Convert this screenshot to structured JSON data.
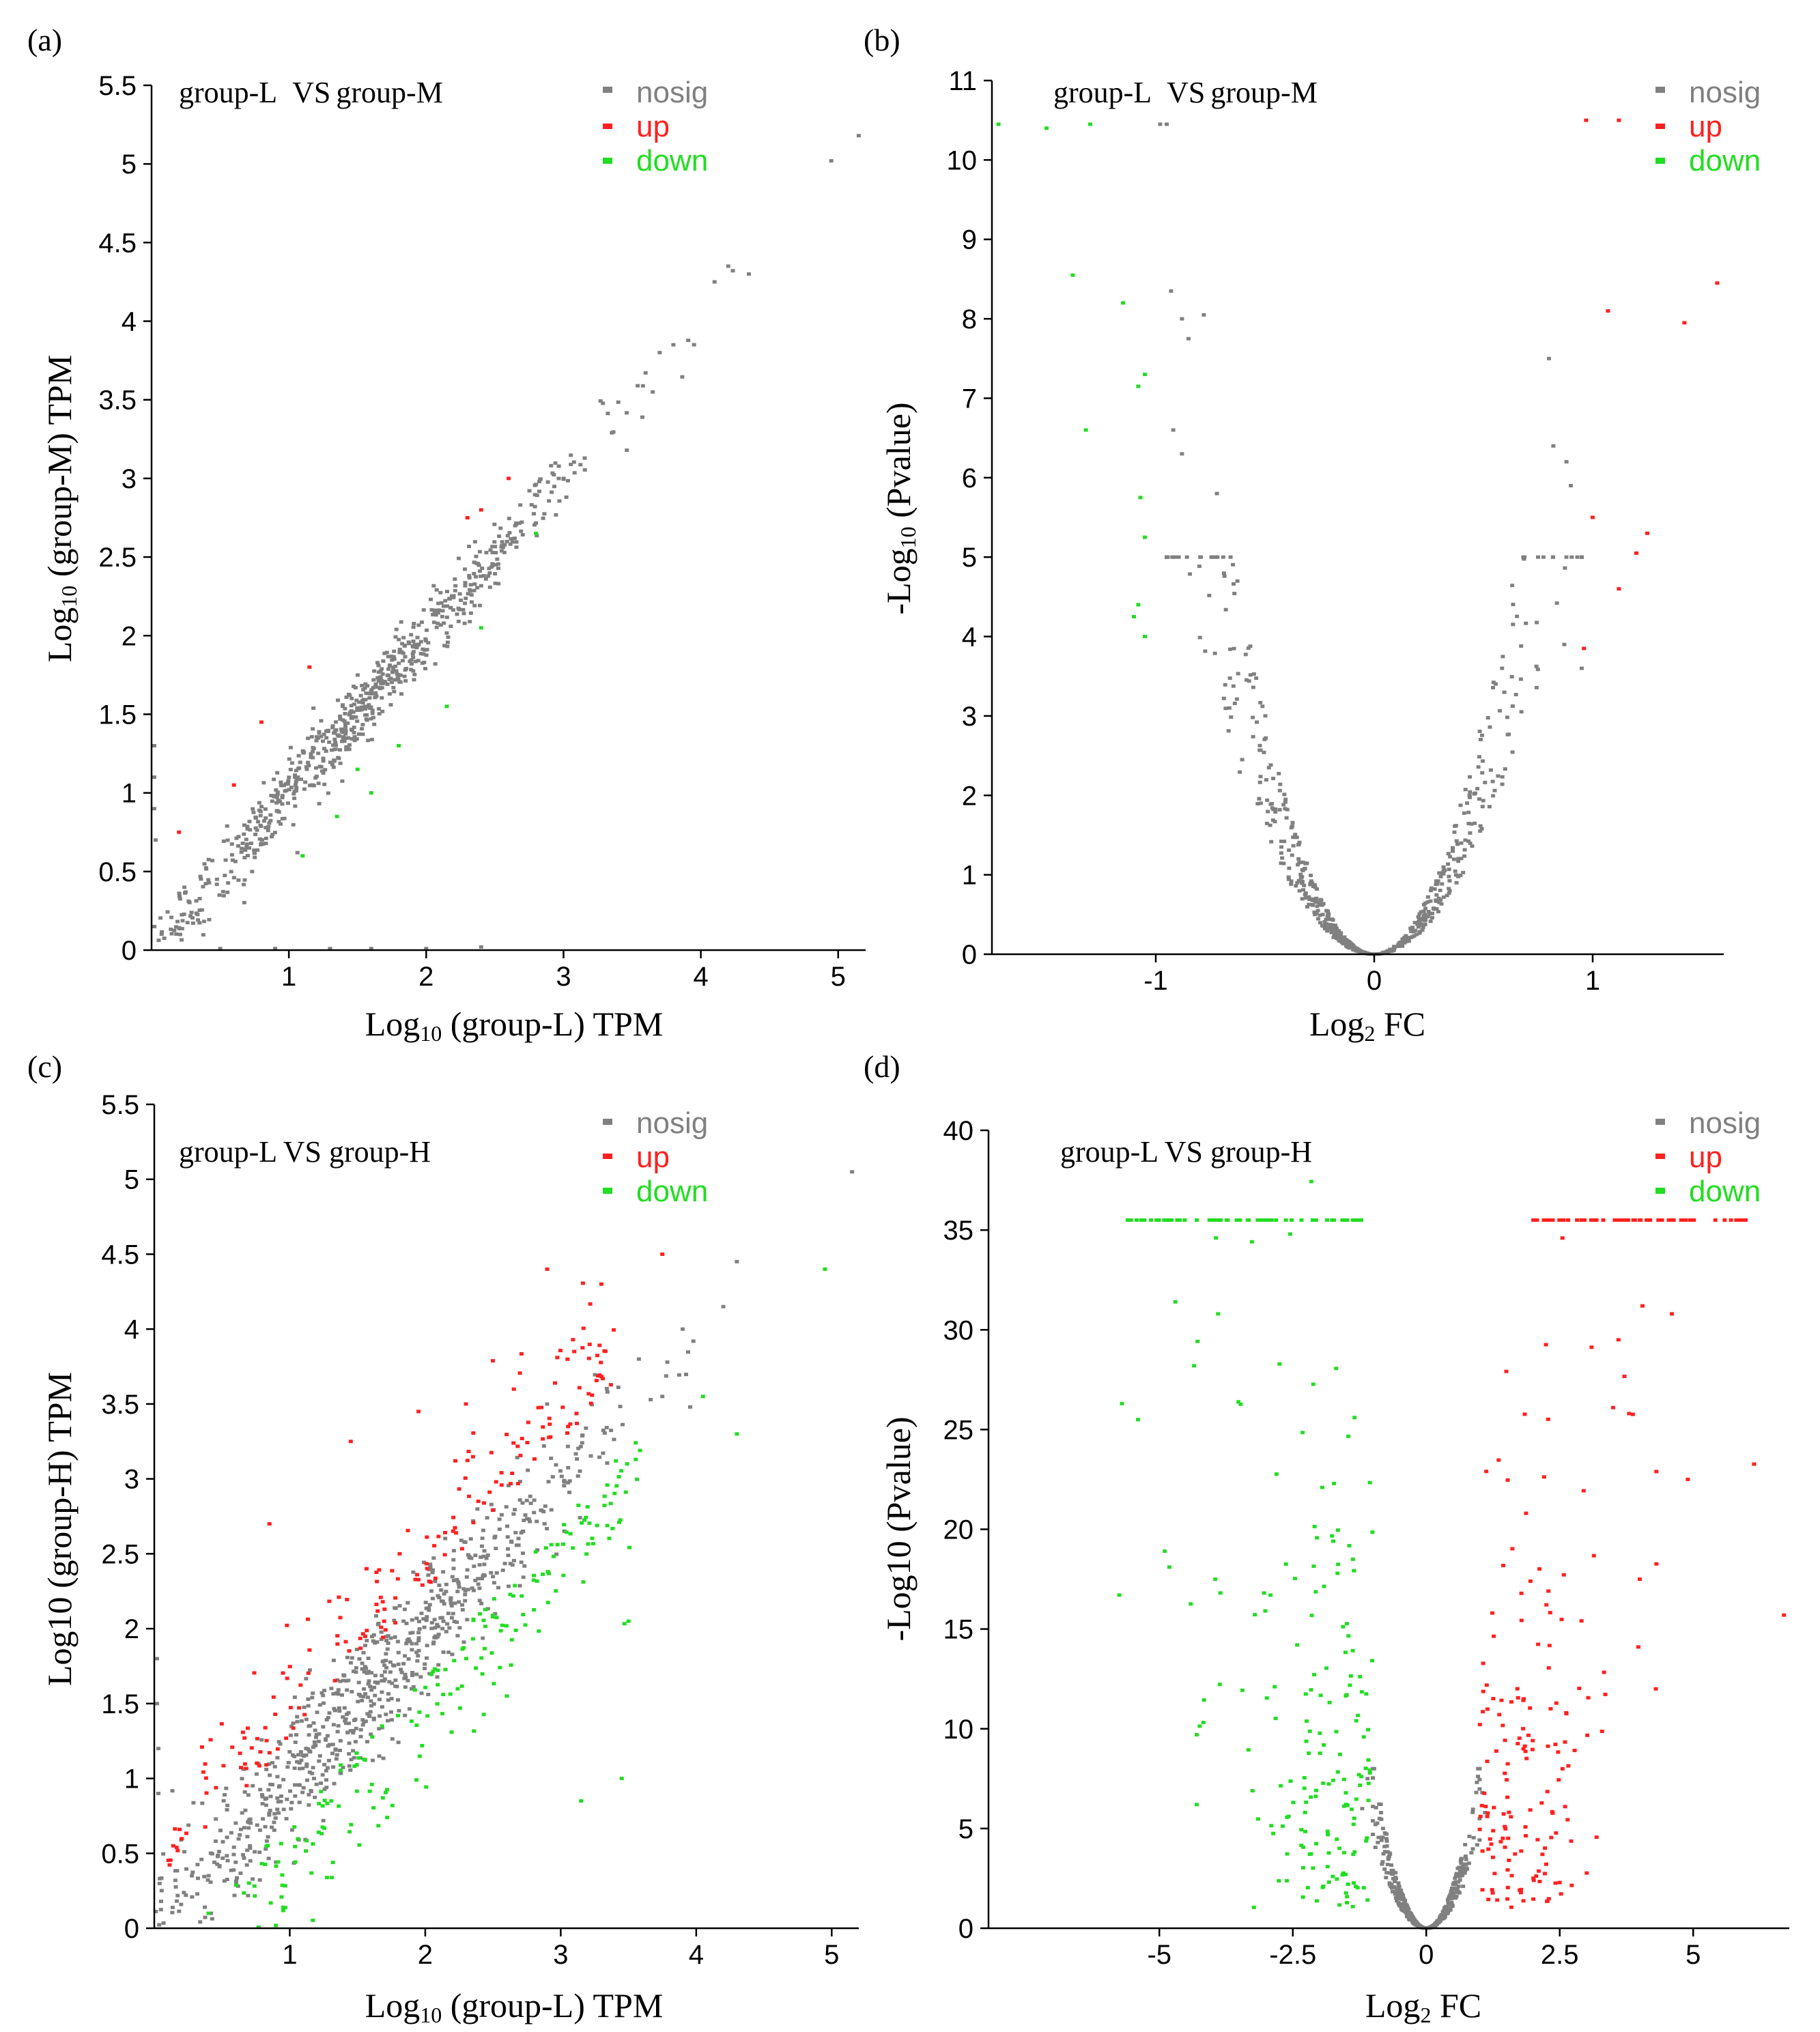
{
  "colors": {
    "nosig": "#808080",
    "up": "#ff2020",
    "down": "#22dd22",
    "axis": "#000000"
  },
  "chart_data": [
    {
      "panel": "(a)",
      "type": "scatter",
      "title": "group-L VS group-M",
      "title_parts": [
        "group-L",
        "VS",
        "group-M"
      ],
      "xlabel_parts": [
        "Log",
        "10",
        " (group-L) TPM"
      ],
      "ylabel_parts": [
        "Log",
        "10",
        " (group-M) TPM"
      ],
      "xlim": [
        0,
        5.2
      ],
      "ylim": [
        0,
        5.5
      ],
      "xticks": [
        1,
        2,
        3,
        4,
        5
      ],
      "xtick_labels": [
        "1",
        "2",
        "3",
        "4",
        "5"
      ],
      "yticks": [
        0,
        0.5,
        1,
        1.5,
        2,
        2.5,
        3,
        3.5,
        4,
        4.5,
        5,
        5.5
      ],
      "ytick_labels": [
        "0",
        "0.5",
        "1",
        "1.5",
        "2",
        "2.5",
        "3",
        "3.5",
        "4",
        "4.5",
        "5",
        "5.5"
      ],
      "legend": [
        "nosig",
        "up",
        "down"
      ],
      "mode": "ma",
      "nosig_band": 0.11,
      "nosig_count": 720,
      "series": [
        {
          "name": "nosig",
          "points": [
            [
              4.95,
              5.02
            ],
            [
              5.15,
              5.18
            ],
            [
              4.1,
              4.25
            ],
            [
              4.2,
              4.35
            ],
            [
              4.35,
              4.3
            ],
            [
              3.8,
              3.85
            ],
            [
              3.95,
              3.85
            ],
            [
              3.7,
              3.8
            ],
            [
              3.65,
              3.55
            ],
            [
              0.02,
              1.3
            ],
            [
              0.02,
              1.1
            ],
            [
              0.02,
              0.9
            ],
            [
              0.03,
              0.7
            ],
            [
              0.5,
              0.01
            ],
            [
              0.9,
              0.01
            ],
            [
              1.3,
              0.01
            ],
            [
              1.6,
              0.01
            ],
            [
              2.0,
              0.01
            ],
            [
              2.4,
              0.02
            ]
          ]
        },
        {
          "name": "up",
          "points": [
            [
              0.2,
              0.75
            ],
            [
              0.6,
              1.05
            ],
            [
              0.8,
              1.45
            ],
            [
              1.15,
              1.8
            ],
            [
              2.4,
              2.8
            ],
            [
              2.6,
              3.0
            ],
            [
              2.3,
              2.75
            ]
          ]
        },
        {
          "name": "down",
          "points": [
            [
              1.1,
              0.6
            ],
            [
              1.35,
              0.85
            ],
            [
              1.5,
              1.15
            ],
            [
              1.8,
              1.3
            ],
            [
              2.15,
              1.55
            ],
            [
              2.4,
              2.05
            ],
            [
              2.8,
              2.65
            ],
            [
              1.6,
              1.0
            ]
          ]
        }
      ]
    },
    {
      "panel": "(b)",
      "type": "scatter",
      "title": "group-L VS group-M",
      "title_parts": [
        "group-L",
        "VS",
        "group-M"
      ],
      "xlabel_parts": [
        "Log",
        "2",
        " FC"
      ],
      "ylabel_parts": [
        "-Log",
        "10",
        " (Pvalue)"
      ],
      "xlim": [
        -1.75,
        1.6
      ],
      "ylim": [
        0,
        11
      ],
      "xticks": [
        -1,
        0,
        1
      ],
      "xtick_labels": [
        "-1",
        "0",
        "1"
      ],
      "yticks": [
        0,
        1,
        2,
        3,
        4,
        5,
        6,
        7,
        8,
        9,
        10,
        11
      ],
      "ytick_labels": [
        "0",
        "1",
        "2",
        "3",
        "4",
        "5",
        "6",
        "7",
        "8",
        "9",
        "10",
        "11"
      ],
      "legend": [
        "nosig",
        "up",
        "down"
      ],
      "mode": "volcano",
      "v_scale": 11.0,
      "v_maxy": 5.0,
      "v_xmax": 0.95,
      "nosig_count": 650,
      "series": [
        {
          "name": "nosig",
          "points": [
            [
              -0.98,
              10.45
            ],
            [
              -0.95,
              10.45
            ],
            [
              -0.93,
              8.35
            ],
            [
              -0.88,
              8.0
            ],
            [
              -0.78,
              8.05
            ],
            [
              -0.85,
              7.75
            ],
            [
              -0.92,
              6.6
            ],
            [
              -0.88,
              6.3
            ],
            [
              -0.72,
              5.8
            ],
            [
              0.82,
              6.4
            ],
            [
              0.88,
              6.2
            ],
            [
              0.9,
              5.9
            ],
            [
              0.8,
              7.5
            ],
            [
              0.75,
              5.0
            ],
            [
              0.87,
              3.9
            ],
            [
              0.95,
              3.6
            ]
          ]
        },
        {
          "name": "up",
          "points": [
            [
              0.97,
              10.5
            ],
            [
              1.12,
              10.5
            ],
            [
              1.57,
              8.45
            ],
            [
              1.07,
              8.1
            ],
            [
              1.42,
              7.95
            ],
            [
              1.0,
              5.5
            ],
            [
              1.25,
              5.3
            ],
            [
              1.2,
              5.05
            ],
            [
              1.12,
              4.6
            ],
            [
              0.96,
              3.85
            ]
          ]
        },
        {
          "name": "down",
          "points": [
            [
              -1.72,
              10.45
            ],
            [
              -1.5,
              10.4
            ],
            [
              -1.3,
              10.45
            ],
            [
              -1.38,
              8.55
            ],
            [
              -1.15,
              8.2
            ],
            [
              -1.05,
              7.3
            ],
            [
              -1.08,
              7.15
            ],
            [
              -1.32,
              6.6
            ],
            [
              -1.07,
              5.75
            ],
            [
              -1.05,
              5.25
            ],
            [
              -1.08,
              4.4
            ],
            [
              -1.1,
              4.25
            ],
            [
              -1.05,
              4.0
            ]
          ]
        }
      ]
    },
    {
      "panel": "(c)",
      "type": "scatter",
      "title": "group-L VS group-H",
      "title_parts": [
        "group-L VS group-H"
      ],
      "xlabel_parts": [
        "Log",
        "10",
        " (group-L) TPM"
      ],
      "ylabel_parts": [
        "Log10 (group-H) TPM"
      ],
      "xlim": [
        0,
        5.2
      ],
      "ylim": [
        0,
        5.5
      ],
      "xticks": [
        1,
        2,
        3,
        4,
        5
      ],
      "xtick_labels": [
        "1",
        "2",
        "3",
        "4",
        "5"
      ],
      "yticks": [
        0,
        0.5,
        1,
        1.5,
        2,
        2.5,
        3,
        3.5,
        4,
        4.5,
        5,
        5.5
      ],
      "ytick_labels": [
        "0",
        "0.5",
        "1",
        "1.5",
        "2",
        "2.5",
        "3",
        "3.5",
        "4",
        "4.5",
        "5",
        "5.5"
      ],
      "legend": [
        "nosig",
        "up",
        "down"
      ],
      "mode": "ma",
      "nosig_band": 0.22,
      "nosig_count": 780,
      "up_count": 180,
      "down_count": 190,
      "series": [
        {
          "name": "nosig",
          "points": [
            [
              5.15,
              5.05
            ],
            [
              4.3,
              4.45
            ],
            [
              4.2,
              4.15
            ],
            [
              3.9,
              4.0
            ],
            [
              3.75,
              3.55
            ],
            [
              0.02,
              1.8
            ],
            [
              0.02,
              1.5
            ],
            [
              0.03,
              1.2
            ],
            [
              0.03,
              0.9
            ]
          ]
        },
        {
          "name": "up",
          "points": [
            [
              2.9,
              4.4
            ],
            [
              3.75,
              4.5
            ],
            [
              3.3,
              4.3
            ],
            [
              2.3,
              3.5
            ],
            [
              1.95,
              3.45
            ],
            [
              0.85,
              2.7
            ],
            [
              1.45,
              3.25
            ],
            [
              3.1,
              3.85
            ]
          ]
        },
        {
          "name": "down",
          "points": [
            [
              4.95,
              4.4
            ],
            [
              4.05,
              3.55
            ],
            [
              4.3,
              3.3
            ],
            [
              3.45,
              1.0
            ],
            [
              3.15,
              0.85
            ],
            [
              0.4,
              0.1
            ],
            [
              3.5,
              2.05
            ]
          ]
        }
      ]
    },
    {
      "panel": "(d)",
      "type": "scatter",
      "title": "group-L VS group-H",
      "title_parts": [
        "group-L VS group-H"
      ],
      "xlabel_parts": [
        "Log",
        "2",
        " FC"
      ],
      "ylabel_parts": [
        "-Log10 (Pvalue)"
      ],
      "xlim": [
        -8.2,
        6.8
      ],
      "ylim": [
        0,
        40
      ],
      "xticks": [
        -5,
        -2.5,
        0,
        2.5,
        5
      ],
      "xtick_labels": [
        "-5",
        "-2.5",
        "0",
        "2.5",
        "5"
      ],
      "yticks": [
        0,
        5,
        10,
        15,
        20,
        25,
        30,
        35,
        40
      ],
      "ytick_labels": [
        "0",
        "5",
        "10",
        "15",
        "20",
        "25",
        "30",
        "35",
        "40"
      ],
      "legend": [
        "nosig",
        "up",
        "down"
      ],
      "mode": "volcano",
      "v_scale": 8.0,
      "v_maxy": 8.0,
      "v_xmax": 1.0,
      "nosig_count": 620,
      "cap_y": 35.5,
      "series": [
        {
          "name": "nosig",
          "points": [
            [
              -1.2,
              6.0
            ],
            [
              -1.1,
              7.5
            ],
            [
              1.05,
              6.8
            ],
            [
              1.1,
              5.8
            ],
            [
              -0.95,
              5.2
            ]
          ]
        },
        {
          "name": "up",
          "points": [
            [
              6.7,
              15.7
            ],
            [
              4.9,
              22.5
            ],
            [
              4.6,
              30.8
            ],
            [
              4.05,
              31.2
            ],
            [
              4.0,
              17.5
            ],
            [
              3.8,
              25.8
            ],
            [
              3.6,
              29.5
            ],
            [
              2.55,
              34.6
            ],
            [
              4.3,
              12.0
            ],
            [
              3.5,
              26.1
            ]
          ]
        },
        {
          "name": "down",
          "points": [
            [
              -5.7,
              26.3
            ],
            [
              -5.75,
              16.7
            ],
            [
              -5.4,
              25.5
            ],
            [
              -4.3,
              6.2
            ],
            [
              -4.9,
              18.9
            ],
            [
              -4.7,
              31.4
            ],
            [
              -4.35,
              28.2
            ],
            [
              -4.3,
              9.7
            ],
            [
              -3.9,
              30.8
            ],
            [
              -2.55,
              34.8
            ]
          ]
        }
      ]
    }
  ]
}
